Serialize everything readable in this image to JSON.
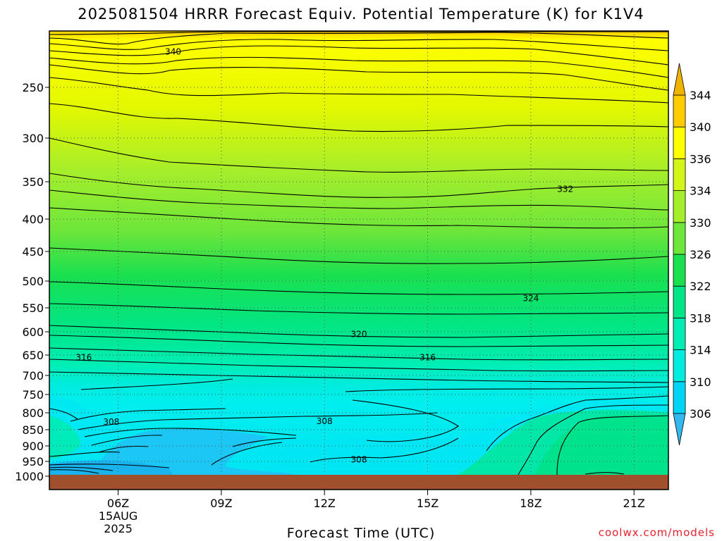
{
  "title": "2025081504 HRRR Forecast Equiv. Potential Temperature (K) for K1V4",
  "xlabel": "Forecast Time (UTC)",
  "credit": "coolwx.com/models",
  "chart_data": {
    "type": "heatmap",
    "title": "2025081504 HRRR Forecast Equiv. Potential Temperature (K) for K1V4",
    "xlabel": "Forecast Time (UTC)",
    "ylabel": "",
    "x_ticks": [
      {
        "hour": 6,
        "label": "06Z",
        "sub": [
          "15AUG",
          "2025"
        ]
      },
      {
        "hour": 9,
        "label": "09Z"
      },
      {
        "hour": 12,
        "label": "12Z"
      },
      {
        "hour": 15,
        "label": "15Z"
      },
      {
        "hour": 18,
        "label": "18Z"
      },
      {
        "hour": 21,
        "label": "21Z"
      }
    ],
    "xlim": [
      4,
      22
    ],
    "y_ticks": [
      250,
      300,
      350,
      400,
      450,
      500,
      550,
      600,
      650,
      700,
      750,
      800,
      850,
      900,
      950,
      1000
    ],
    "ylim": [
      1020,
      200
    ],
    "colorbar": {
      "levels": [
        306,
        310,
        314,
        318,
        322,
        326,
        330,
        334,
        336,
        340,
        344
      ],
      "colors": [
        "#33b8f0",
        "#00d5f5",
        "#00ecdf",
        "#00eeb4",
        "#00e687",
        "#1ae04f",
        "#6ee63a",
        "#a4ee2c",
        "#d4f51a",
        "#ffff00",
        "#ffcc00",
        "#f0b400"
      ]
    },
    "surface_color": "#a0502d",
    "contour_labels": [
      {
        "value": 340,
        "hour": 7.6,
        "pressure": 215
      },
      {
        "value": 332,
        "hour": 19.0,
        "pressure": 360
      },
      {
        "value": 324,
        "hour": 18.0,
        "pressure": 532
      },
      {
        "value": 320,
        "hour": 13.0,
        "pressure": 605
      },
      {
        "value": 316,
        "hour": 5.0,
        "pressure": 656
      },
      {
        "value": 316,
        "hour": 15.0,
        "pressure": 656
      },
      {
        "value": 308,
        "hour": 5.8,
        "pressure": 827
      },
      {
        "value": 308,
        "hour": 12.0,
        "pressure": 825
      },
      {
        "value": 308,
        "hour": 13.0,
        "pressure": 944
      }
    ]
  }
}
